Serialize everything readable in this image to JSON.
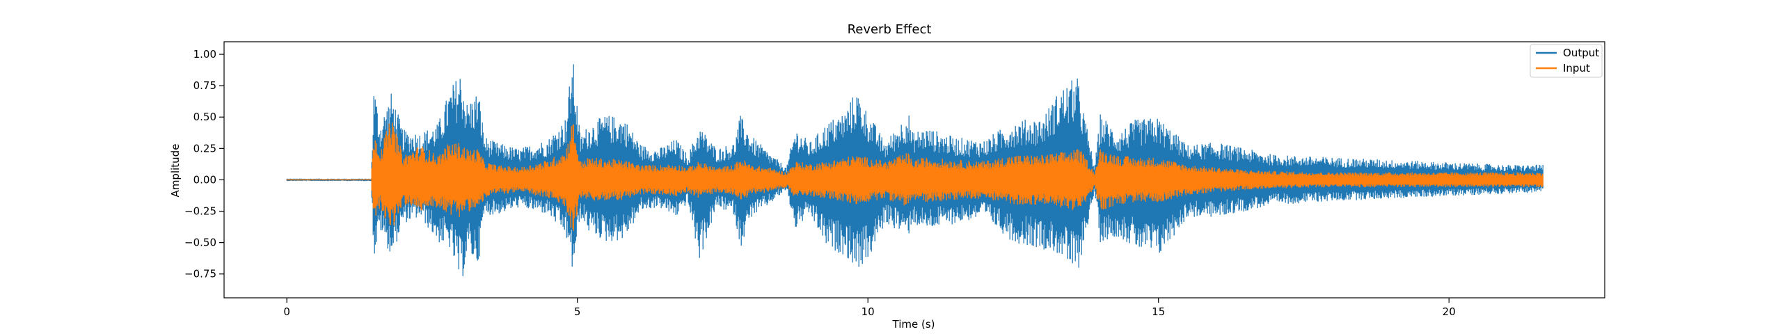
{
  "chart_data": {
    "type": "line",
    "title": "Reverb Effect",
    "xlabel": "Time (s)",
    "ylabel": "Amplitude",
    "xlim": [
      -1.08,
      22.68
    ],
    "ylim": [
      -0.94,
      1.1
    ],
    "xticks": [
      0,
      5,
      10,
      15,
      20
    ],
    "yticks": [
      -0.75,
      -0.5,
      -0.25,
      0.0,
      0.25,
      0.5,
      0.75,
      1.0
    ],
    "xtick_labels": [
      "0",
      "5",
      "10",
      "15",
      "20"
    ],
    "ytick_labels": [
      "−0.75",
      "−0.50",
      "−0.25",
      "0.00",
      "0.25",
      "0.50",
      "0.75",
      "1.00"
    ],
    "grid": false,
    "legend_position": "top-right",
    "series": [
      {
        "name": "Output",
        "color": "#1f77b4",
        "envelope": {
          "t": [
            0,
            1.45,
            1.5,
            1.6,
            1.8,
            2.0,
            2.3,
            2.6,
            2.8,
            3.0,
            3.1,
            3.3,
            3.4,
            3.6,
            4.0,
            4.5,
            4.8,
            4.92,
            5.05,
            5.2,
            5.5,
            5.8,
            6.1,
            6.4,
            6.7,
            6.9,
            7.1,
            7.4,
            7.7,
            7.8,
            8.0,
            8.3,
            8.6,
            8.75,
            9.0,
            9.3,
            9.6,
            9.8,
            10.0,
            10.3,
            10.7,
            10.75,
            11.0,
            11.5,
            12.0,
            12.5,
            13.0,
            13.3,
            13.6,
            13.7,
            13.9,
            14.0,
            14.3,
            14.6,
            15.0,
            15.5,
            16.0,
            16.5,
            17.0,
            18.0,
            19.0,
            20.0,
            21.0,
            21.62
          ],
          "upper": [
            0.01,
            0.01,
            0.78,
            0.45,
            0.7,
            0.4,
            0.38,
            0.45,
            0.72,
            0.88,
            0.62,
            0.72,
            0.35,
            0.3,
            0.25,
            0.33,
            0.5,
            1.0,
            0.35,
            0.45,
            0.52,
            0.5,
            0.28,
            0.25,
            0.33,
            0.2,
            0.43,
            0.25,
            0.3,
            0.52,
            0.35,
            0.22,
            0.1,
            0.42,
            0.3,
            0.46,
            0.55,
            0.72,
            0.54,
            0.3,
            0.55,
            0.38,
            0.42,
            0.34,
            0.32,
            0.47,
            0.5,
            0.72,
            0.83,
            0.59,
            0.1,
            0.53,
            0.38,
            0.48,
            0.5,
            0.28,
            0.3,
            0.25,
            0.2,
            0.18,
            0.16,
            0.14,
            0.12,
            0.12
          ],
          "lower": [
            -0.01,
            -0.01,
            -0.65,
            -0.4,
            -0.62,
            -0.35,
            -0.3,
            -0.5,
            -0.55,
            -0.85,
            -0.6,
            -0.68,
            -0.28,
            -0.28,
            -0.22,
            -0.28,
            -0.45,
            -0.75,
            -0.3,
            -0.42,
            -0.5,
            -0.48,
            -0.25,
            -0.22,
            -0.3,
            -0.18,
            -0.65,
            -0.22,
            -0.28,
            -0.55,
            -0.3,
            -0.2,
            -0.08,
            -0.4,
            -0.28,
            -0.55,
            -0.6,
            -0.72,
            -0.65,
            -0.35,
            -0.45,
            -0.35,
            -0.4,
            -0.35,
            -0.3,
            -0.5,
            -0.55,
            -0.6,
            -0.78,
            -0.55,
            -0.1,
            -0.5,
            -0.45,
            -0.55,
            -0.62,
            -0.3,
            -0.3,
            -0.25,
            -0.2,
            -0.17,
            -0.15,
            -0.13,
            -0.11,
            -0.1
          ]
        }
      },
      {
        "name": "Input",
        "color": "#ff7f0e",
        "envelope": {
          "t": [
            0,
            1.45,
            1.5,
            1.6,
            1.8,
            2.0,
            2.3,
            2.6,
            2.8,
            3.0,
            3.1,
            3.3,
            3.4,
            3.6,
            4.0,
            4.5,
            4.8,
            4.92,
            5.05,
            5.2,
            5.5,
            5.8,
            6.1,
            6.4,
            6.7,
            6.9,
            7.1,
            7.4,
            7.7,
            7.8,
            8.0,
            8.3,
            8.6,
            8.75,
            9.0,
            9.3,
            9.6,
            9.8,
            10.0,
            10.3,
            10.7,
            10.75,
            11.0,
            11.5,
            12.0,
            12.5,
            13.0,
            13.3,
            13.6,
            13.7,
            13.9,
            14.0,
            14.3,
            14.6,
            15.0,
            15.5,
            16.0,
            16.5,
            17.0,
            18.0,
            19.0,
            20.0,
            21.0,
            21.62
          ],
          "upper": [
            0.005,
            0.005,
            0.42,
            0.25,
            0.5,
            0.2,
            0.28,
            0.2,
            0.3,
            0.3,
            0.25,
            0.25,
            0.15,
            0.12,
            0.1,
            0.16,
            0.24,
            0.5,
            0.15,
            0.18,
            0.17,
            0.16,
            0.12,
            0.12,
            0.13,
            0.1,
            0.15,
            0.1,
            0.12,
            0.18,
            0.12,
            0.1,
            0.06,
            0.15,
            0.13,
            0.15,
            0.18,
            0.2,
            0.18,
            0.15,
            0.22,
            0.16,
            0.18,
            0.16,
            0.15,
            0.2,
            0.2,
            0.22,
            0.25,
            0.22,
            0.06,
            0.25,
            0.2,
            0.18,
            0.18,
            0.12,
            0.1,
            0.08,
            0.07,
            0.06,
            0.06,
            0.06,
            0.06,
            0.06
          ],
          "lower": [
            -0.005,
            -0.005,
            -0.38,
            -0.22,
            -0.42,
            -0.2,
            -0.25,
            -0.22,
            -0.28,
            -0.3,
            -0.25,
            -0.25,
            -0.15,
            -0.12,
            -0.1,
            -0.15,
            -0.22,
            -0.45,
            -0.15,
            -0.17,
            -0.17,
            -0.16,
            -0.12,
            -0.12,
            -0.13,
            -0.1,
            -0.15,
            -0.1,
            -0.12,
            -0.18,
            -0.12,
            -0.1,
            -0.06,
            -0.15,
            -0.13,
            -0.15,
            -0.18,
            -0.2,
            -0.18,
            -0.15,
            -0.22,
            -0.16,
            -0.18,
            -0.16,
            -0.15,
            -0.2,
            -0.2,
            -0.22,
            -0.25,
            -0.22,
            -0.06,
            -0.25,
            -0.2,
            -0.18,
            -0.18,
            -0.12,
            -0.1,
            -0.08,
            -0.07,
            -0.06,
            -0.06,
            -0.06,
            -0.06,
            -0.06
          ]
        }
      }
    ]
  }
}
